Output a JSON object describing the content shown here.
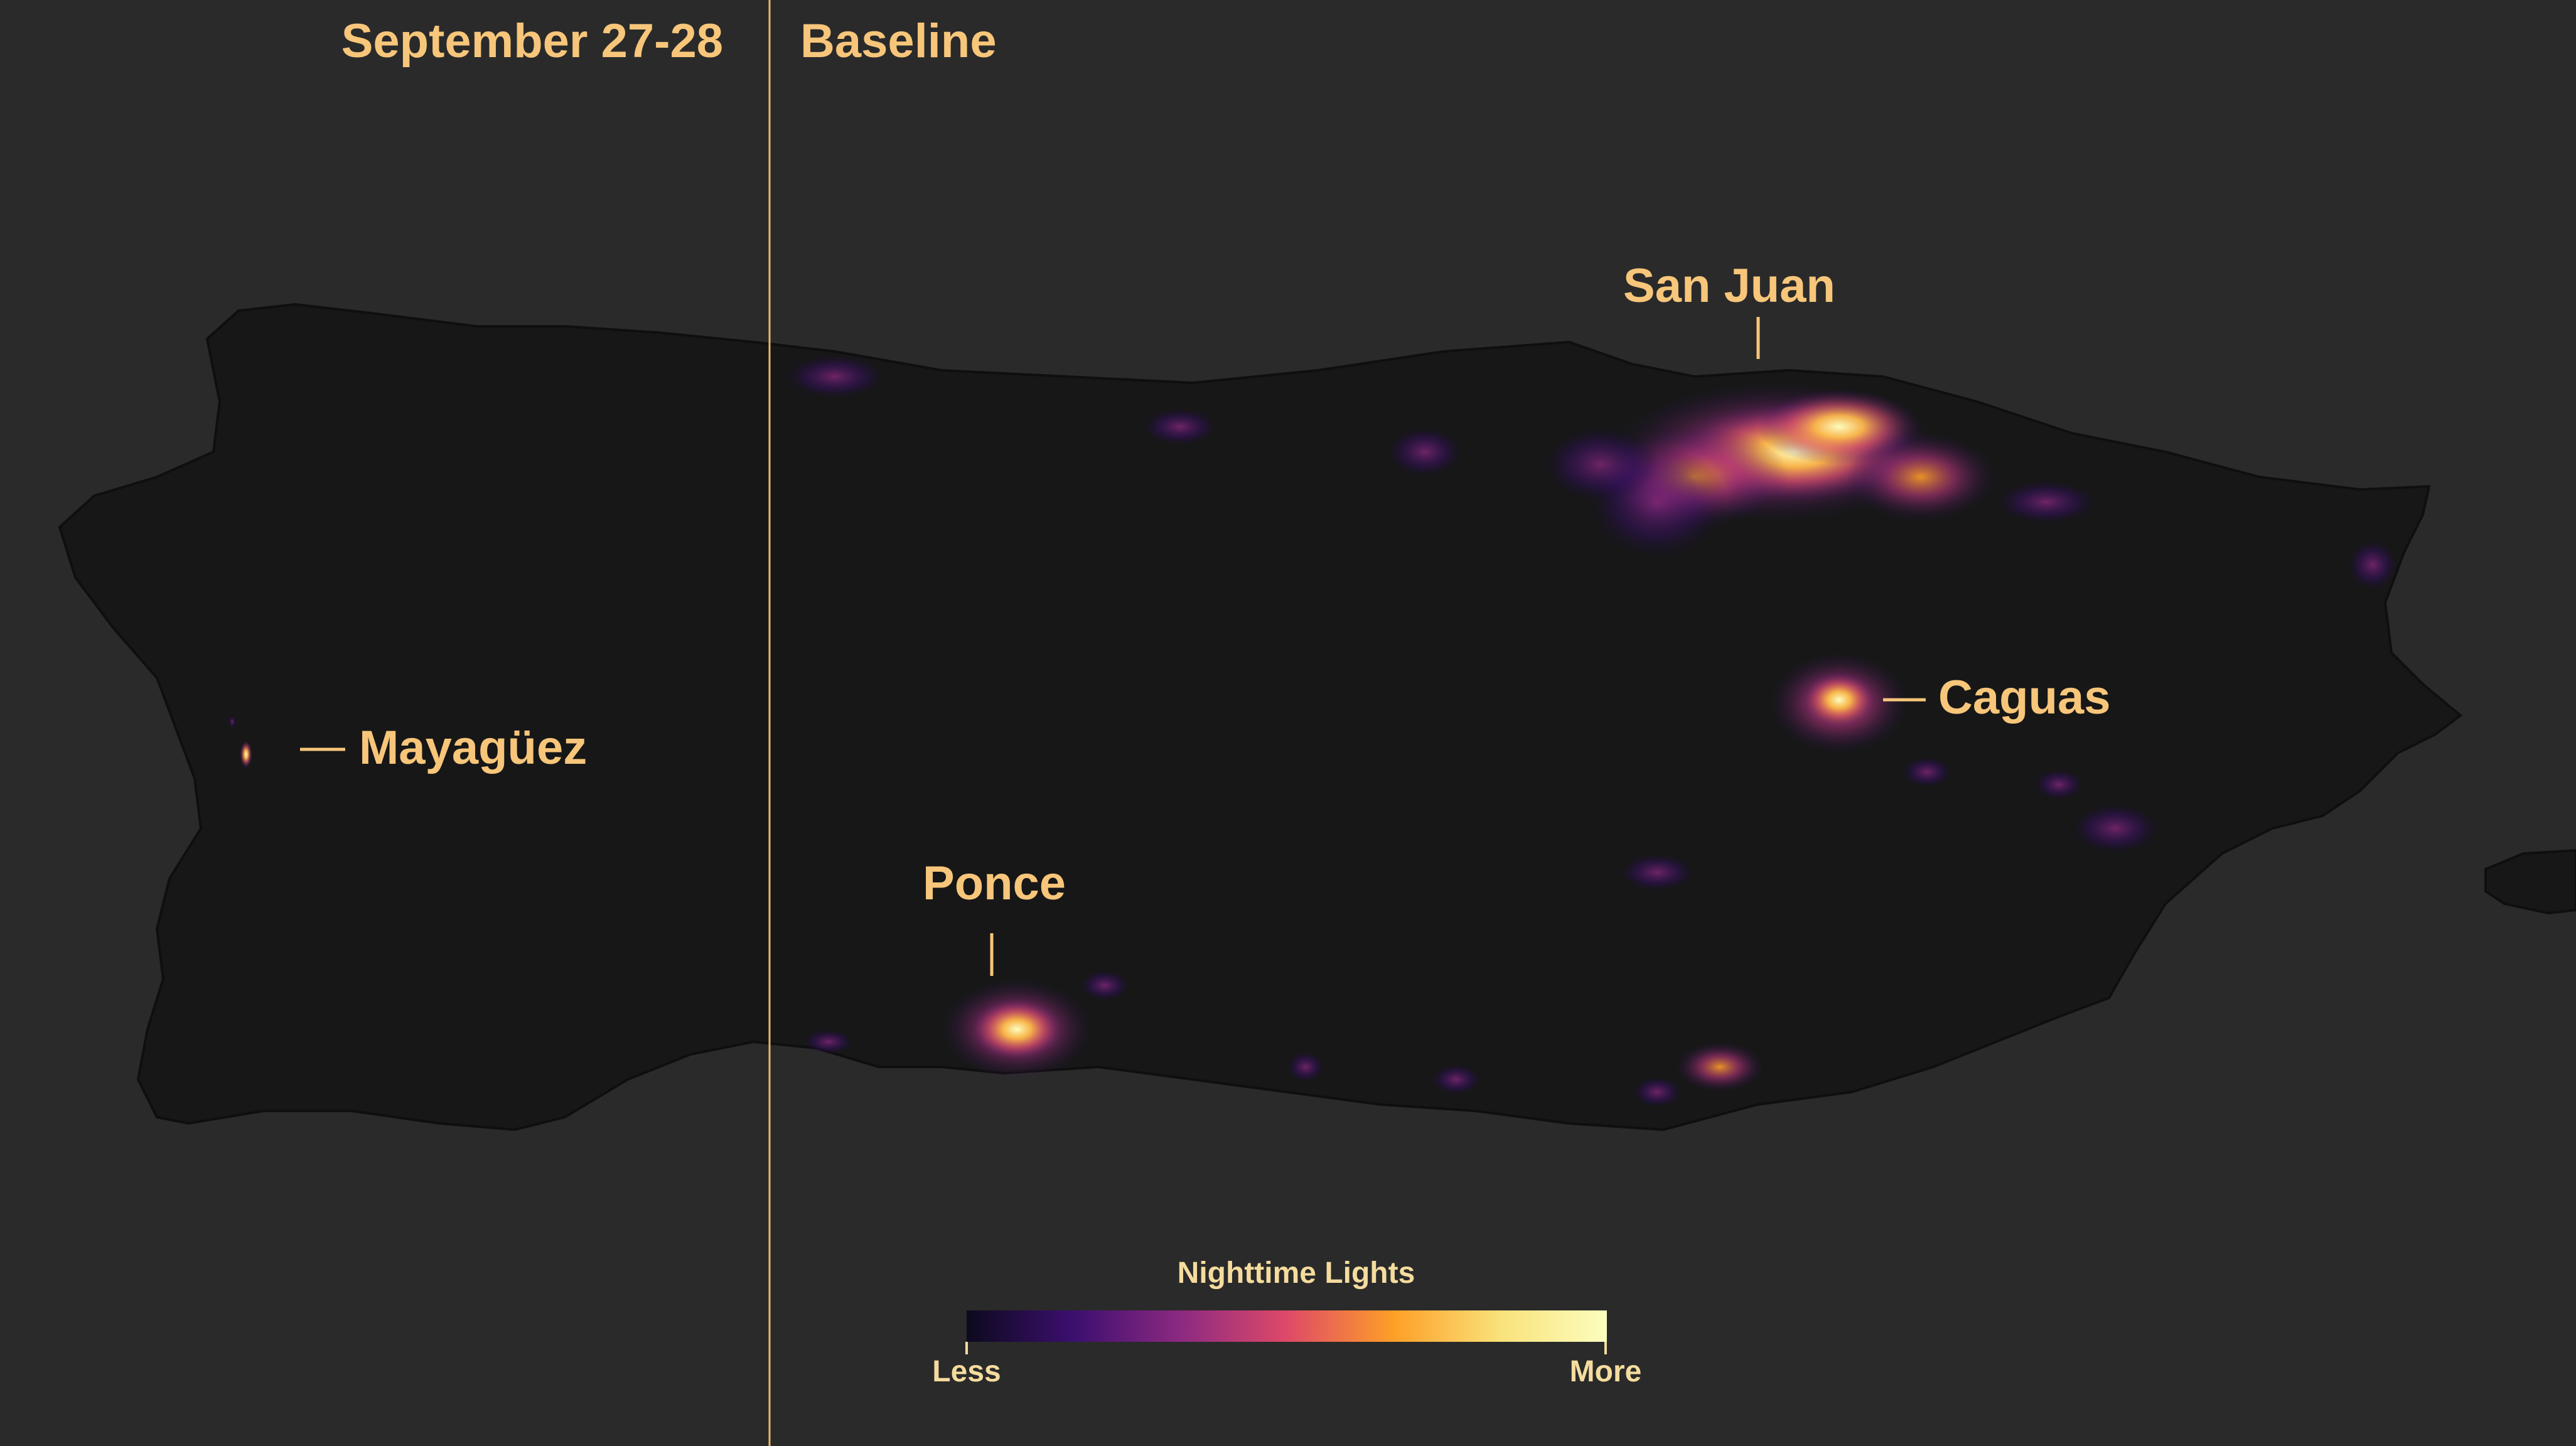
{
  "panels": {
    "left_label": "September 27-28",
    "right_label": "Baseline"
  },
  "cities": {
    "san_juan": "San Juan",
    "mayaguez": "Mayagüez",
    "caguas": "Caguas",
    "ponce": "Ponce"
  },
  "legend": {
    "title": "Nighttime Lights",
    "less_label": "Less",
    "more_label": "More",
    "gradient_colors": [
      "#0d0a1e",
      "#3b0f6f",
      "#8c2981",
      "#de4968",
      "#fe9f27",
      "#f9e27a",
      "#fcfdbf"
    ]
  },
  "colors": {
    "background": "#2a2a2a",
    "land": "#171717",
    "label_text": "#f7c67a",
    "divider": "#e8b86a",
    "legend_text": "#f5dc9e"
  }
}
